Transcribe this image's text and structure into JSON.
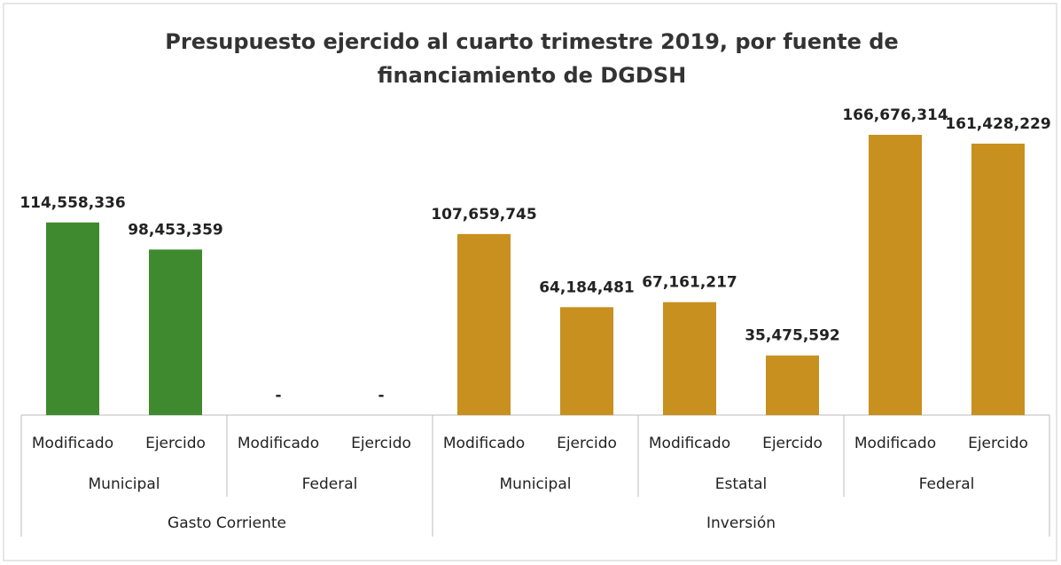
{
  "chart_data": {
    "type": "bar",
    "title": "Presupuesto ejercido al cuarto trimestre 2019, por fuente de financiamiento de DGDSH",
    "category_groups": [
      {
        "label": "Gasto Corriente",
        "color": "#3f8a2e",
        "groups": [
          {
            "label": "Municipal",
            "categories": [
              "Modificado",
              "Ejercido"
            ]
          },
          {
            "label": "Federal",
            "categories": [
              "Modificado",
              "Ejercido"
            ]
          }
        ]
      },
      {
        "label": "Inversión",
        "color": "#c8901e",
        "groups": [
          {
            "label": "Municipal",
            "categories": [
              "Modificado",
              "Ejercido"
            ]
          },
          {
            "label": "Estatal",
            "categories": [
              "Modificado",
              "Ejercido"
            ]
          },
          {
            "label": "Federal",
            "categories": [
              "Modificado",
              "Ejercido"
            ]
          }
        ]
      }
    ],
    "values": [
      114558336,
      98453359,
      0,
      0,
      107659745,
      64184481,
      67161217,
      35475592,
      166676314,
      161428229
    ],
    "value_labels": [
      "114,558,336",
      "98,453,359",
      "-",
      "-",
      "107,659,745",
      "64,184,481",
      "67,161,217",
      "35,475,592",
      "166,676,314",
      "161,428,229"
    ]
  }
}
